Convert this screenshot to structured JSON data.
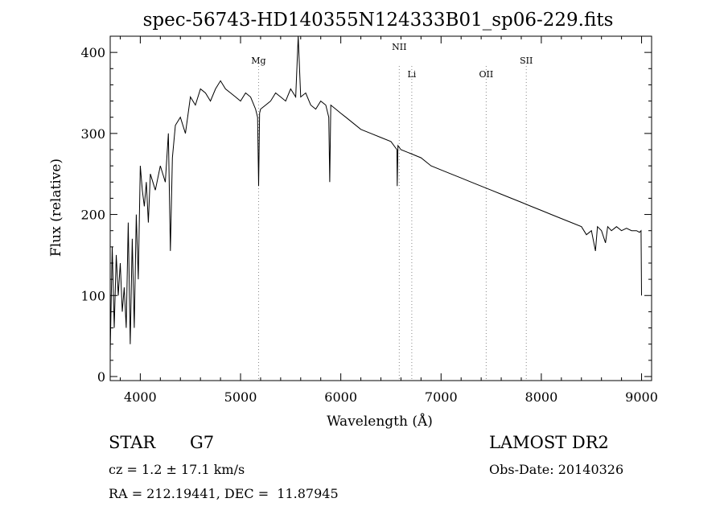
{
  "chart_data": {
    "type": "line",
    "title": "spec-56743-HD140355N124333B01_sp06-229.fits",
    "xlabel": "Wavelength (Å)",
    "ylabel": "Flux (relative)",
    "xlim": [
      3700,
      9100
    ],
    "ylim": [
      -5,
      420
    ],
    "x_ticks": [
      "4000",
      "5000",
      "6000",
      "7000",
      "8000",
      "9000"
    ],
    "y_ticks": [
      "0",
      "100",
      "200",
      "300",
      "400"
    ],
    "x_tick_values": [
      4000,
      5000,
      6000,
      7000,
      8000,
      9000
    ],
    "y_tick_values": [
      0,
      100,
      200,
      300,
      400
    ],
    "line_markers": [
      {
        "label": "Mg",
        "x": 5180
      },
      {
        "label": "NII",
        "x": 6583
      },
      {
        "label": "Li",
        "x": 6708
      },
      {
        "label": "OII",
        "x": 7450
      },
      {
        "label": "SII",
        "x": 7850
      }
    ],
    "grid": false,
    "series": [
      {
        "x": [
          3700,
          3720,
          3740,
          3760,
          3780,
          3800,
          3820,
          3840,
          3860,
          3880,
          3900,
          3920,
          3940,
          3960,
          3980,
          4000,
          4020,
          4040,
          4060,
          4080,
          4100,
          4150,
          4200,
          4250,
          4280,
          4300,
          4320,
          4350,
          4400,
          4450,
          4500,
          4550,
          4600,
          4650,
          4700,
          4750,
          4800,
          4850,
          4900,
          4950,
          5000,
          5050,
          5100,
          5150,
          5170,
          5180,
          5190,
          5200,
          5250,
          5300,
          5350,
          5400,
          5450,
          5500,
          5550,
          5575,
          5600,
          5650,
          5700,
          5750,
          5800,
          5850,
          5880,
          5890,
          5900,
          5950,
          6000,
          6050,
          6100,
          6200,
          6300,
          6400,
          6500,
          6560,
          6563,
          6570,
          6600,
          6700,
          6800,
          6900,
          7000,
          7100,
          7200,
          7300,
          7400,
          7500,
          7600,
          7700,
          7800,
          7900,
          8000,
          8100,
          8200,
          8300,
          8400,
          8450,
          8500,
          8540,
          8560,
          8600,
          8640,
          8662,
          8700,
          8750,
          8800,
          8850,
          8900,
          8950,
          8980,
          8995,
          9000
        ],
        "values": [
          30,
          160,
          60,
          150,
          100,
          140,
          80,
          110,
          60,
          190,
          40,
          170,
          60,
          200,
          120,
          260,
          230,
          210,
          240,
          190,
          250,
          230,
          260,
          240,
          300,
          155,
          270,
          310,
          320,
          300,
          345,
          335,
          355,
          350,
          340,
          355,
          365,
          355,
          350,
          345,
          340,
          350,
          345,
          330,
          320,
          235,
          325,
          330,
          335,
          340,
          350,
          345,
          340,
          355,
          345,
          420,
          345,
          350,
          335,
          330,
          340,
          335,
          320,
          240,
          335,
          330,
          325,
          320,
          315,
          305,
          300,
          295,
          290,
          280,
          235,
          285,
          280,
          275,
          270,
          260,
          255,
          250,
          245,
          240,
          235,
          230,
          225,
          220,
          215,
          210,
          205,
          200,
          195,
          190,
          185,
          175,
          180,
          155,
          185,
          180,
          165,
          185,
          180,
          185,
          180,
          183,
          180,
          180,
          178,
          180,
          100
        ]
      }
    ]
  },
  "info": {
    "object_type": "STAR",
    "subclass": "G7",
    "survey": "LAMOST DR2",
    "cz": "cz = 1.2 ± 17.1 km/s",
    "obs_date": "Obs-Date: 20140326",
    "ra_dec": "RA = 212.19441, DEC =  11.87945"
  },
  "colors": {
    "line": "#000000",
    "axes": "#000000",
    "marker": "#888888"
  }
}
